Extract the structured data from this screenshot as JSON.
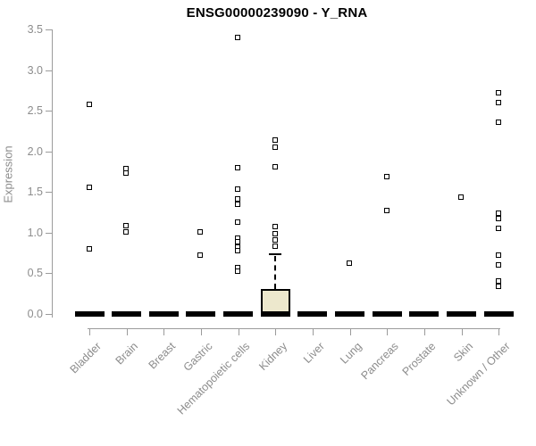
{
  "title": "ENSG00000239090 - Y_RNA",
  "chart_data": {
    "type": "boxplot",
    "title": "ENSG00000239090 - Y_RNA",
    "xlabel": "",
    "ylabel": "Expression",
    "ylim": [
      0,
      3.5
    ],
    "yticks": [
      0,
      0.5,
      1,
      1.5,
      2,
      2.5,
      3,
      3.5
    ],
    "grid": false,
    "legend": "none",
    "categories": [
      "Bladder",
      "Brain",
      "Breast",
      "Gastric",
      "Hematopoietic cells",
      "Kidney",
      "Liver",
      "Lung",
      "Pancreas",
      "Prostate",
      "Skin",
      "Unknown / Other"
    ],
    "boxes": [
      {
        "category": "Bladder",
        "whisker_low": 0,
        "q1": 0,
        "median": 0,
        "q3": 0,
        "whisker_high": 0,
        "outliers": [
          2.57,
          1.55,
          0.79
        ]
      },
      {
        "category": "Brain",
        "whisker_low": 0,
        "q1": 0,
        "median": 0,
        "q3": 0,
        "whisker_high": 0,
        "outliers": [
          1.78,
          1.73,
          1.08,
          1.0
        ]
      },
      {
        "category": "Breast",
        "whisker_low": 0,
        "q1": 0,
        "median": 0,
        "q3": 0,
        "whisker_high": 0,
        "outliers": []
      },
      {
        "category": "Gastric",
        "whisker_low": 0,
        "q1": 0,
        "median": 0,
        "q3": 0,
        "whisker_high": 0,
        "outliers": [
          1.0,
          0.72
        ]
      },
      {
        "category": "Hematopoietic cells",
        "whisker_low": 0,
        "q1": 0,
        "median": 0,
        "q3": 0,
        "whisker_high": 0,
        "outliers": [
          3.4,
          1.79,
          1.53,
          1.41,
          1.34,
          1.12,
          0.93,
          0.88,
          0.82,
          0.77,
          0.57,
          0.52
        ]
      },
      {
        "category": "Kidney",
        "whisker_low": 0,
        "q1": 0,
        "median": 0,
        "q3": 0.29,
        "whisker_high": 0.73,
        "outliers": [
          2.13,
          2.05,
          1.8,
          1.07,
          0.98,
          0.91,
          0.83
        ]
      },
      {
        "category": "Liver",
        "whisker_low": 0,
        "q1": 0,
        "median": 0,
        "q3": 0,
        "whisker_high": 0,
        "outliers": []
      },
      {
        "category": "Lung",
        "whisker_low": 0,
        "q1": 0,
        "median": 0,
        "q3": 0,
        "whisker_high": 0,
        "outliers": [
          0.62
        ]
      },
      {
        "category": "Pancreas",
        "whisker_low": 0,
        "q1": 0,
        "median": 0,
        "q3": 0,
        "whisker_high": 0,
        "outliers": [
          1.68,
          1.27
        ]
      },
      {
        "category": "Prostate",
        "whisker_low": 0,
        "q1": 0,
        "median": 0,
        "q3": 0,
        "whisker_high": 0,
        "outliers": []
      },
      {
        "category": "Skin",
        "whisker_low": 0,
        "q1": 0,
        "median": 0,
        "q3": 0,
        "whisker_high": 0,
        "outliers": [
          1.43
        ]
      },
      {
        "category": "Unknown / Other",
        "whisker_low": 0,
        "q1": 0,
        "median": 0,
        "q3": 0,
        "whisker_high": 0,
        "outliers": [
          2.72,
          2.6,
          2.35,
          1.23,
          1.17,
          1.05,
          0.72,
          0.6,
          0.4,
          0.34
        ]
      }
    ],
    "colors": {
      "box_fill": "#EDE8CD",
      "box_border": "#000000",
      "median_line": "#000000",
      "outlier_marker": "#000000",
      "axis": "#9b9b9b",
      "tick_label": "#8c8c8c",
      "title": "#000000"
    },
    "marker": "open-square",
    "legend_position": "none"
  }
}
